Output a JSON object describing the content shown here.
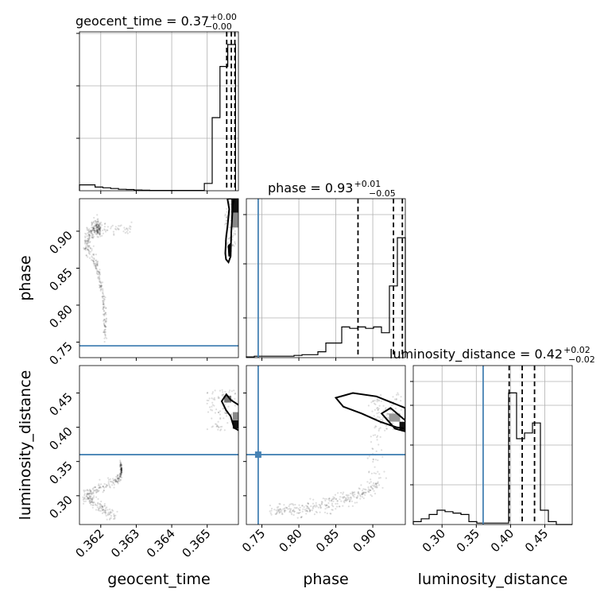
{
  "chart_data": {
    "type": "corner",
    "parameters": [
      "geocent_time",
      "phase",
      "luminosity_distance"
    ],
    "truth": {
      "phase": 0.745,
      "luminosity_distance": 0.36
    },
    "titles": [
      {
        "base": "geocent_time = 0.37",
        "sup": "+0.00",
        "sub": "−0.00"
      },
      {
        "base": "phase = 0.93",
        "sup": "+0.01",
        "sub": "−0.05"
      },
      {
        "base": "luminosity_distance = 0.42",
        "sup": "+0.02",
        "sub": "−0.02"
      }
    ],
    "axis_labels": {
      "x": [
        "geocent_time",
        "phase",
        "luminosity_distance"
      ],
      "y": [
        "phase",
        "luminosity_distance"
      ]
    },
    "ticks": {
      "geocent_time": [
        "0.362",
        "0.363",
        "0.364",
        "0.365"
      ],
      "phase_x": [
        "0.75",
        "0.80",
        "0.85",
        "0.90"
      ],
      "phase_y": [
        "0.90",
        "0.85",
        "0.80",
        "0.75"
      ],
      "luminosity_distance_x": [
        "0.30",
        "0.35",
        "0.40",
        "0.45"
      ],
      "luminosity_distance_y": [
        "0.45",
        "0.40",
        "0.35",
        "0.30"
      ]
    },
    "ranges": {
      "geocent_time": [
        0.3614,
        0.36588
      ],
      "phase": [
        0.729,
        0.944
      ],
      "luminosity_distance": [
        0.258,
        0.49
      ]
    },
    "histograms": {
      "geocent_time": {
        "edges": [
          0.3614,
          0.36162,
          0.36184,
          0.36206,
          0.36228,
          0.3625,
          0.36272,
          0.36294,
          0.36316,
          0.36338,
          0.3636,
          0.36382,
          0.36404,
          0.36426,
          0.36448,
          0.3647,
          0.36492,
          0.36514,
          0.36536,
          0.36558,
          0.3658
        ],
        "counts": [
          0.04,
          0.04,
          0.025,
          0.02,
          0.015,
          0.01,
          0.008,
          0.005,
          0.003,
          0.002,
          0.002,
          0.002,
          0.002,
          0.002,
          0.002,
          0.002,
          0.05,
          0.5,
          0.85,
          1.0
        ],
        "quantiles": [
          0.36555,
          0.36568,
          0.36578
        ]
      },
      "phase": {
        "edges": [
          0.729,
          0.7398,
          0.7505,
          0.7613,
          0.772,
          0.7828,
          0.7935,
          0.8043,
          0.815,
          0.8258,
          0.8365,
          0.8473,
          0.858,
          0.8688,
          0.8795,
          0.8903,
          0.901,
          0.9118,
          0.9225,
          0.9333,
          0.944
        ],
        "counts": [
          0.005,
          0.01,
          0.01,
          0.01,
          0.01,
          0.01,
          0.015,
          0.02,
          0.02,
          0.04,
          0.1,
          0.1,
          0.21,
          0.2,
          0.21,
          0.2,
          0.21,
          0.17,
          0.49,
          0.82
        ],
        "quantiles": [
          0.88,
          0.928,
          0.94
        ]
      },
      "luminosity_distance": {
        "edges": [
          0.258,
          0.2696,
          0.2812,
          0.2928,
          0.3044,
          0.316,
          0.3276,
          0.3392,
          0.3508,
          0.3624,
          0.374,
          0.3856,
          0.3972,
          0.4088,
          0.4204,
          0.432,
          0.4436,
          0.4552,
          0.4668,
          0.4784,
          0.49
        ],
        "counts": [
          0.02,
          0.04,
          0.07,
          0.1,
          0.09,
          0.08,
          0.07,
          0.02,
          0.01,
          0.01,
          0.01,
          0.01,
          0.92,
          0.6,
          0.64,
          0.71,
          0.1,
          0.02,
          0,
          0
        ],
        "quantiles": [
          0.398,
          0.417,
          0.435
        ]
      }
    },
    "grid": true
  }
}
